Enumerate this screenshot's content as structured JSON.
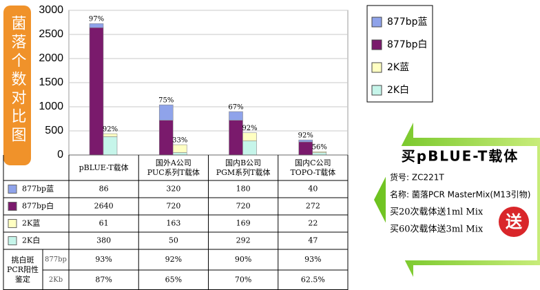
{
  "chart_data": {
    "type": "bar",
    "stacked": true,
    "y_label": "菌落个数对比图",
    "categories": [
      "pBLUE-T载体",
      "国外A公司\nPUC系列T载体",
      "国内B公司\nPGM系列T载体",
      "国内C公司\nTOPO-T载体"
    ],
    "series": [
      {
        "name": "877bp蓝",
        "color": "#8fa3ea",
        "stack": "877bp",
        "values": [
          86,
          320,
          180,
          40
        ]
      },
      {
        "name": "877bp白",
        "color": "#7a1a6c",
        "stack": "877bp",
        "values": [
          2640,
          720,
          720,
          272
        ]
      },
      {
        "name": "2K蓝",
        "color": "#ffffc2",
        "stack": "2K",
        "values": [
          61,
          163,
          169,
          22
        ]
      },
      {
        "name": "2K白",
        "color": "#c6f5ea",
        "stack": "2K",
        "values": [
          380,
          50,
          292,
          47
        ]
      }
    ],
    "annotations": [
      [
        "97%",
        "92%"
      ],
      [
        "75%",
        "33%"
      ],
      [
        "67%",
        "92%"
      ],
      [
        "92%",
        "56%"
      ]
    ],
    "ylim": [
      0,
      3000
    ],
    "yticks": [
      0,
      500,
      1000,
      1500,
      2000,
      2500,
      3000
    ],
    "grid": true,
    "legend": "right",
    "table_row_header": "挑白斑\nPCR阳性\n鉴定",
    "table_rows": [
      {
        "label": "877bp",
        "values": [
          "93%",
          "92%",
          "90%",
          "93%"
        ]
      },
      {
        "label": "2Kb",
        "values": [
          "87%",
          "65%",
          "70%",
          "62.5%"
        ]
      }
    ]
  },
  "promo": {
    "title": "买pBLUE-T载体",
    "lines": [
      "货号: ZC221T",
      "名称: 菌落PCR MasterMix(M13引物)",
      "买20次载体送1ml Mix",
      "买60次载体送3ml Mix"
    ],
    "badge": "送"
  }
}
